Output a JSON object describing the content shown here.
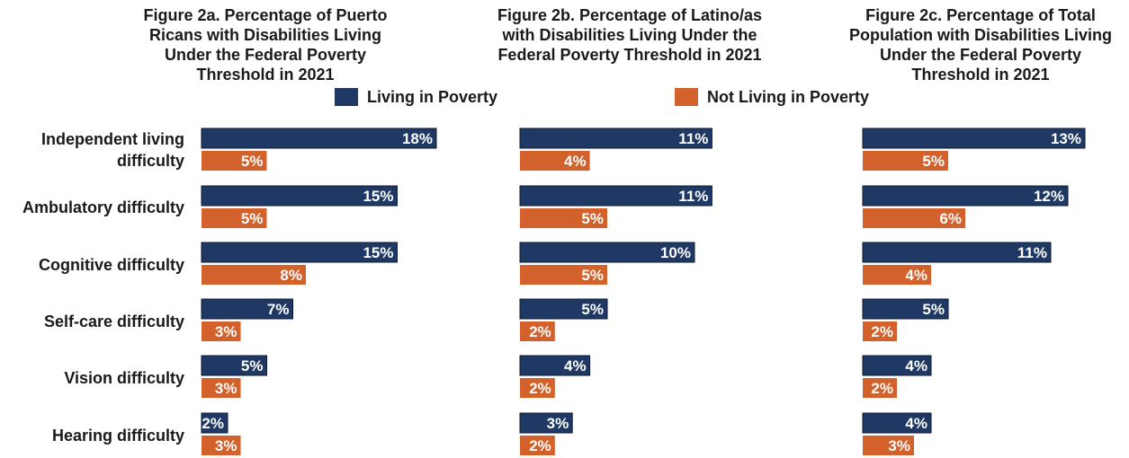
{
  "legend": {
    "poverty_label": "Living in Poverty",
    "not_poverty_label": "Not Living in Poverty"
  },
  "colors": {
    "poverty": "#1f3864",
    "not_poverty": "#d2612b"
  },
  "categories": [
    "Independent living\ndifficulty",
    "Ambulatory difficulty",
    "Cognitive difficulty",
    "Self-care difficulty",
    "Vision difficulty",
    "Hearing difficulty"
  ],
  "chart_data": [
    {
      "type": "bar",
      "title": "Figure 2a. Percentage of Puerto\nRicans with Disabilities Living\nUnder the Federal Poverty\nThreshold in 2021",
      "categories": [
        "Independent living difficulty",
        "Ambulatory difficulty",
        "Cognitive difficulty",
        "Self-care difficulty",
        "Vision difficulty",
        "Hearing difficulty"
      ],
      "series": [
        {
          "name": "Living in Poverty",
          "values": [
            18,
            15,
            15,
            7,
            5,
            2
          ]
        },
        {
          "name": "Not Living in Poverty",
          "values": [
            5,
            5,
            8,
            3,
            3,
            3
          ]
        }
      ]
    },
    {
      "type": "bar",
      "title": "Figure 2b. Percentage of Latino/as\nwith Disabilities Living Under the\nFederal Poverty Threshold in 2021",
      "categories": [
        "Independent living difficulty",
        "Ambulatory difficulty",
        "Cognitive difficulty",
        "Self-care difficulty",
        "Vision difficulty",
        "Hearing difficulty"
      ],
      "series": [
        {
          "name": "Living in Poverty",
          "values": [
            11,
            11,
            10,
            5,
            4,
            3
          ]
        },
        {
          "name": "Not Living in Poverty",
          "values": [
            4,
            5,
            5,
            2,
            2,
            2
          ]
        }
      ]
    },
    {
      "type": "bar",
      "title": "Figure 2c. Percentage of Total\nPopulation with Disabilities Living\nUnder the Federal Poverty\nThreshold in 2021",
      "categories": [
        "Independent living difficulty",
        "Ambulatory difficulty",
        "Cognitive difficulty",
        "Self-care difficulty",
        "Vision difficulty",
        "Hearing difficulty"
      ],
      "series": [
        {
          "name": "Living in Poverty",
          "values": [
            13,
            12,
            11,
            5,
            4,
            4
          ]
        },
        {
          "name": "Not Living in Poverty",
          "values": [
            5,
            6,
            4,
            2,
            2,
            3
          ]
        }
      ]
    }
  ]
}
